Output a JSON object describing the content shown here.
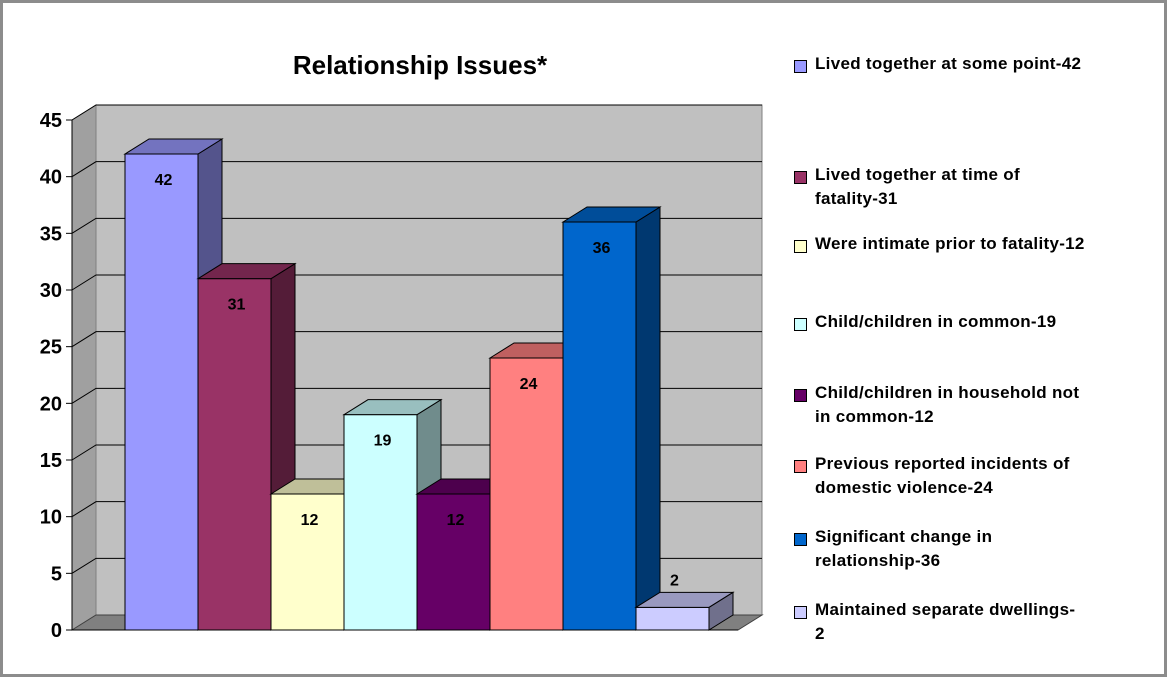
{
  "chart_data": {
    "type": "bar",
    "title": "Relationship Issues*",
    "ylim": [
      0,
      45
    ],
    "yticks": [
      "0",
      "5",
      "10",
      "15",
      "20",
      "25",
      "30",
      "35",
      "40",
      "45"
    ],
    "grid": true,
    "legend_position": "right",
    "series": [
      {
        "name": "Lived together at some point-42",
        "value": 42,
        "label": "42",
        "color": "#9999FF"
      },
      {
        "name": "Lived together at time of fatality-31",
        "value": 31,
        "label": "31",
        "color": "#993366"
      },
      {
        "name": "Were intimate prior to fatality-12",
        "value": 12,
        "label": "12",
        "color": "#FFFFCC"
      },
      {
        "name": "Child/children in common-19",
        "value": 19,
        "label": "19",
        "color": "#CCFFFF"
      },
      {
        "name": "Child/children in household not in common-12",
        "value": 12,
        "label": "12",
        "color": "#660066"
      },
      {
        "name": "Previous reported incidents of domestic violence-24",
        "value": 24,
        "label": "24",
        "color": "#FF8080"
      },
      {
        "name": "Significant change in relationship-36",
        "value": 36,
        "label": "36",
        "color": "#0066CC"
      },
      {
        "name": "Maintained separate dwellings-2",
        "value": 2,
        "label": "2",
        "color": "#CCCCFF"
      }
    ]
  },
  "legend_lines": [
    [
      "Lived together at some point-42"
    ],
    [
      "Lived together at time of",
      "fatality-31"
    ],
    [
      "Were intimate prior to fatality-12"
    ],
    [
      "Child/children in common-19"
    ],
    [
      "Child/children in household not",
      "in common-12"
    ],
    [
      "Previous reported incidents of",
      "domestic violence-24"
    ],
    [
      "Significant change in",
      "relationship-36"
    ],
    [
      "Maintained separate dwellings-",
      "2"
    ]
  ]
}
